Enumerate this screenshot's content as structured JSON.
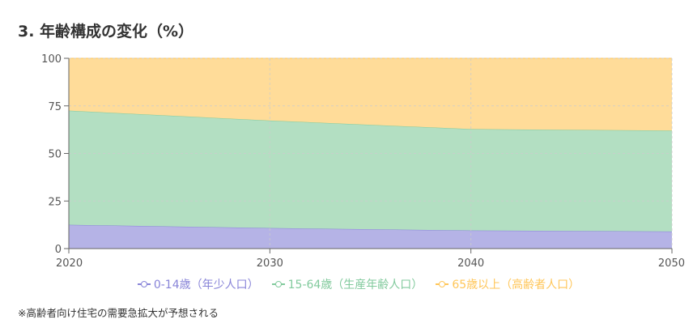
{
  "header": {
    "title": "3. 年齢構成の変化（%）"
  },
  "chart_data": {
    "type": "area",
    "stacked": true,
    "x": [
      2020,
      2030,
      2040,
      2050
    ],
    "xticks": [
      "2020",
      "2030",
      "2040",
      "2050"
    ],
    "ylim": [
      0,
      100
    ],
    "yticks": [
      "0",
      "25",
      "50",
      "75",
      "100"
    ],
    "grid": true,
    "legend_position": "bottom",
    "series": [
      {
        "name": "0-14歳（年少人口）",
        "values": [
          12.5,
          10.8,
          9.5,
          9.0
        ],
        "color": "#8884d8",
        "fill": "#b5b3e6"
      },
      {
        "name": "15-64歳（生産年齢人口）",
        "values": [
          60.0,
          56.5,
          53.3,
          53.0
        ],
        "color": "#82ca9d",
        "fill": "#b3dfc2"
      },
      {
        "name": "65歳以上（高齢者人口）",
        "values": [
          27.5,
          32.7,
          37.2,
          38.0
        ],
        "color": "#ffc658",
        "fill": "#ffdc99"
      }
    ]
  },
  "footnote": "※高齢者向け住宅の需要急拡大が予想される"
}
